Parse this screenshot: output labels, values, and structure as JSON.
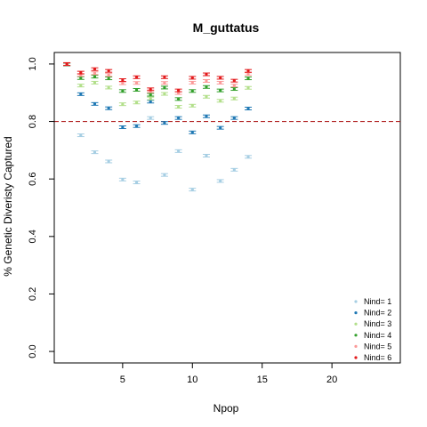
{
  "chart_data": {
    "type": "scatter",
    "title": "M_guttatus",
    "xlabel": "Npop",
    "ylabel": "% Genetic Diveristy Captured",
    "xlim": [
      0.1,
      24.9
    ],
    "ylim": [
      -0.04,
      1.04
    ],
    "x_ticks": [
      5,
      10,
      15,
      20
    ],
    "y_ticks": [
      0.0,
      0.2,
      0.4,
      0.6,
      0.8,
      1.0
    ],
    "x_tick_labels": [
      "5",
      "10",
      "15",
      "20"
    ],
    "y_tick_labels": [
      "0.0",
      "0.2",
      "0.4",
      "0.6",
      "0.8",
      "1.0"
    ],
    "grid": false,
    "legend_position": "bottom-right",
    "reference_line": {
      "y": 0.8,
      "color": "#b22222",
      "style": "dashed"
    },
    "series": [
      {
        "name": "Nind= 1",
        "color": "#a6cee3",
        "x": [
          1,
          2,
          3,
          4,
          5,
          6,
          7,
          8,
          9,
          10,
          11,
          12,
          13,
          14
        ],
        "y": [
          0.997,
          0.752,
          0.693,
          0.661,
          0.598,
          0.588,
          0.812,
          0.614,
          0.697,
          0.563,
          0.681,
          0.593,
          0.632,
          0.677
        ]
      },
      {
        "name": "Nind= 2",
        "color": "#1f78b4",
        "x": [
          1,
          2,
          3,
          4,
          5,
          6,
          7,
          8,
          9,
          10,
          11,
          12,
          13,
          14
        ],
        "y": [
          0.998,
          0.895,
          0.861,
          0.846,
          0.78,
          0.784,
          0.869,
          0.795,
          0.812,
          0.762,
          0.818,
          0.778,
          0.812,
          0.845
        ]
      },
      {
        "name": "Nind= 3",
        "color": "#b2df8a",
        "x": [
          1,
          2,
          3,
          4,
          5,
          6,
          7,
          8,
          9,
          10,
          11,
          12,
          13,
          14
        ],
        "y": [
          0.998,
          0.925,
          0.935,
          0.918,
          0.86,
          0.866,
          0.88,
          0.896,
          0.851,
          0.855,
          0.886,
          0.872,
          0.88,
          0.917
        ]
      },
      {
        "name": "Nind= 4",
        "color": "#33a02c",
        "x": [
          1,
          2,
          3,
          4,
          5,
          6,
          7,
          8,
          9,
          10,
          11,
          12,
          13,
          14
        ],
        "y": [
          0.999,
          0.951,
          0.956,
          0.95,
          0.906,
          0.91,
          0.893,
          0.918,
          0.878,
          0.906,
          0.92,
          0.908,
          0.913,
          0.95
        ]
      },
      {
        "name": "Nind= 5",
        "color": "#fb9a99",
        "x": [
          1,
          2,
          3,
          4,
          5,
          6,
          7,
          8,
          9,
          10,
          11,
          12,
          13,
          14
        ],
        "y": [
          0.999,
          0.962,
          0.968,
          0.962,
          0.933,
          0.934,
          0.905,
          0.934,
          0.899,
          0.935,
          0.941,
          0.935,
          0.925,
          0.965
        ]
      },
      {
        "name": "Nind= 6",
        "color": "#e31a1c",
        "x": [
          1,
          2,
          3,
          4,
          5,
          6,
          7,
          8,
          9,
          10,
          11,
          12,
          13,
          14
        ],
        "y": [
          1.0,
          0.97,
          0.982,
          0.976,
          0.944,
          0.954,
          0.912,
          0.954,
          0.908,
          0.952,
          0.964,
          0.952,
          0.942,
          0.976
        ]
      }
    ]
  }
}
